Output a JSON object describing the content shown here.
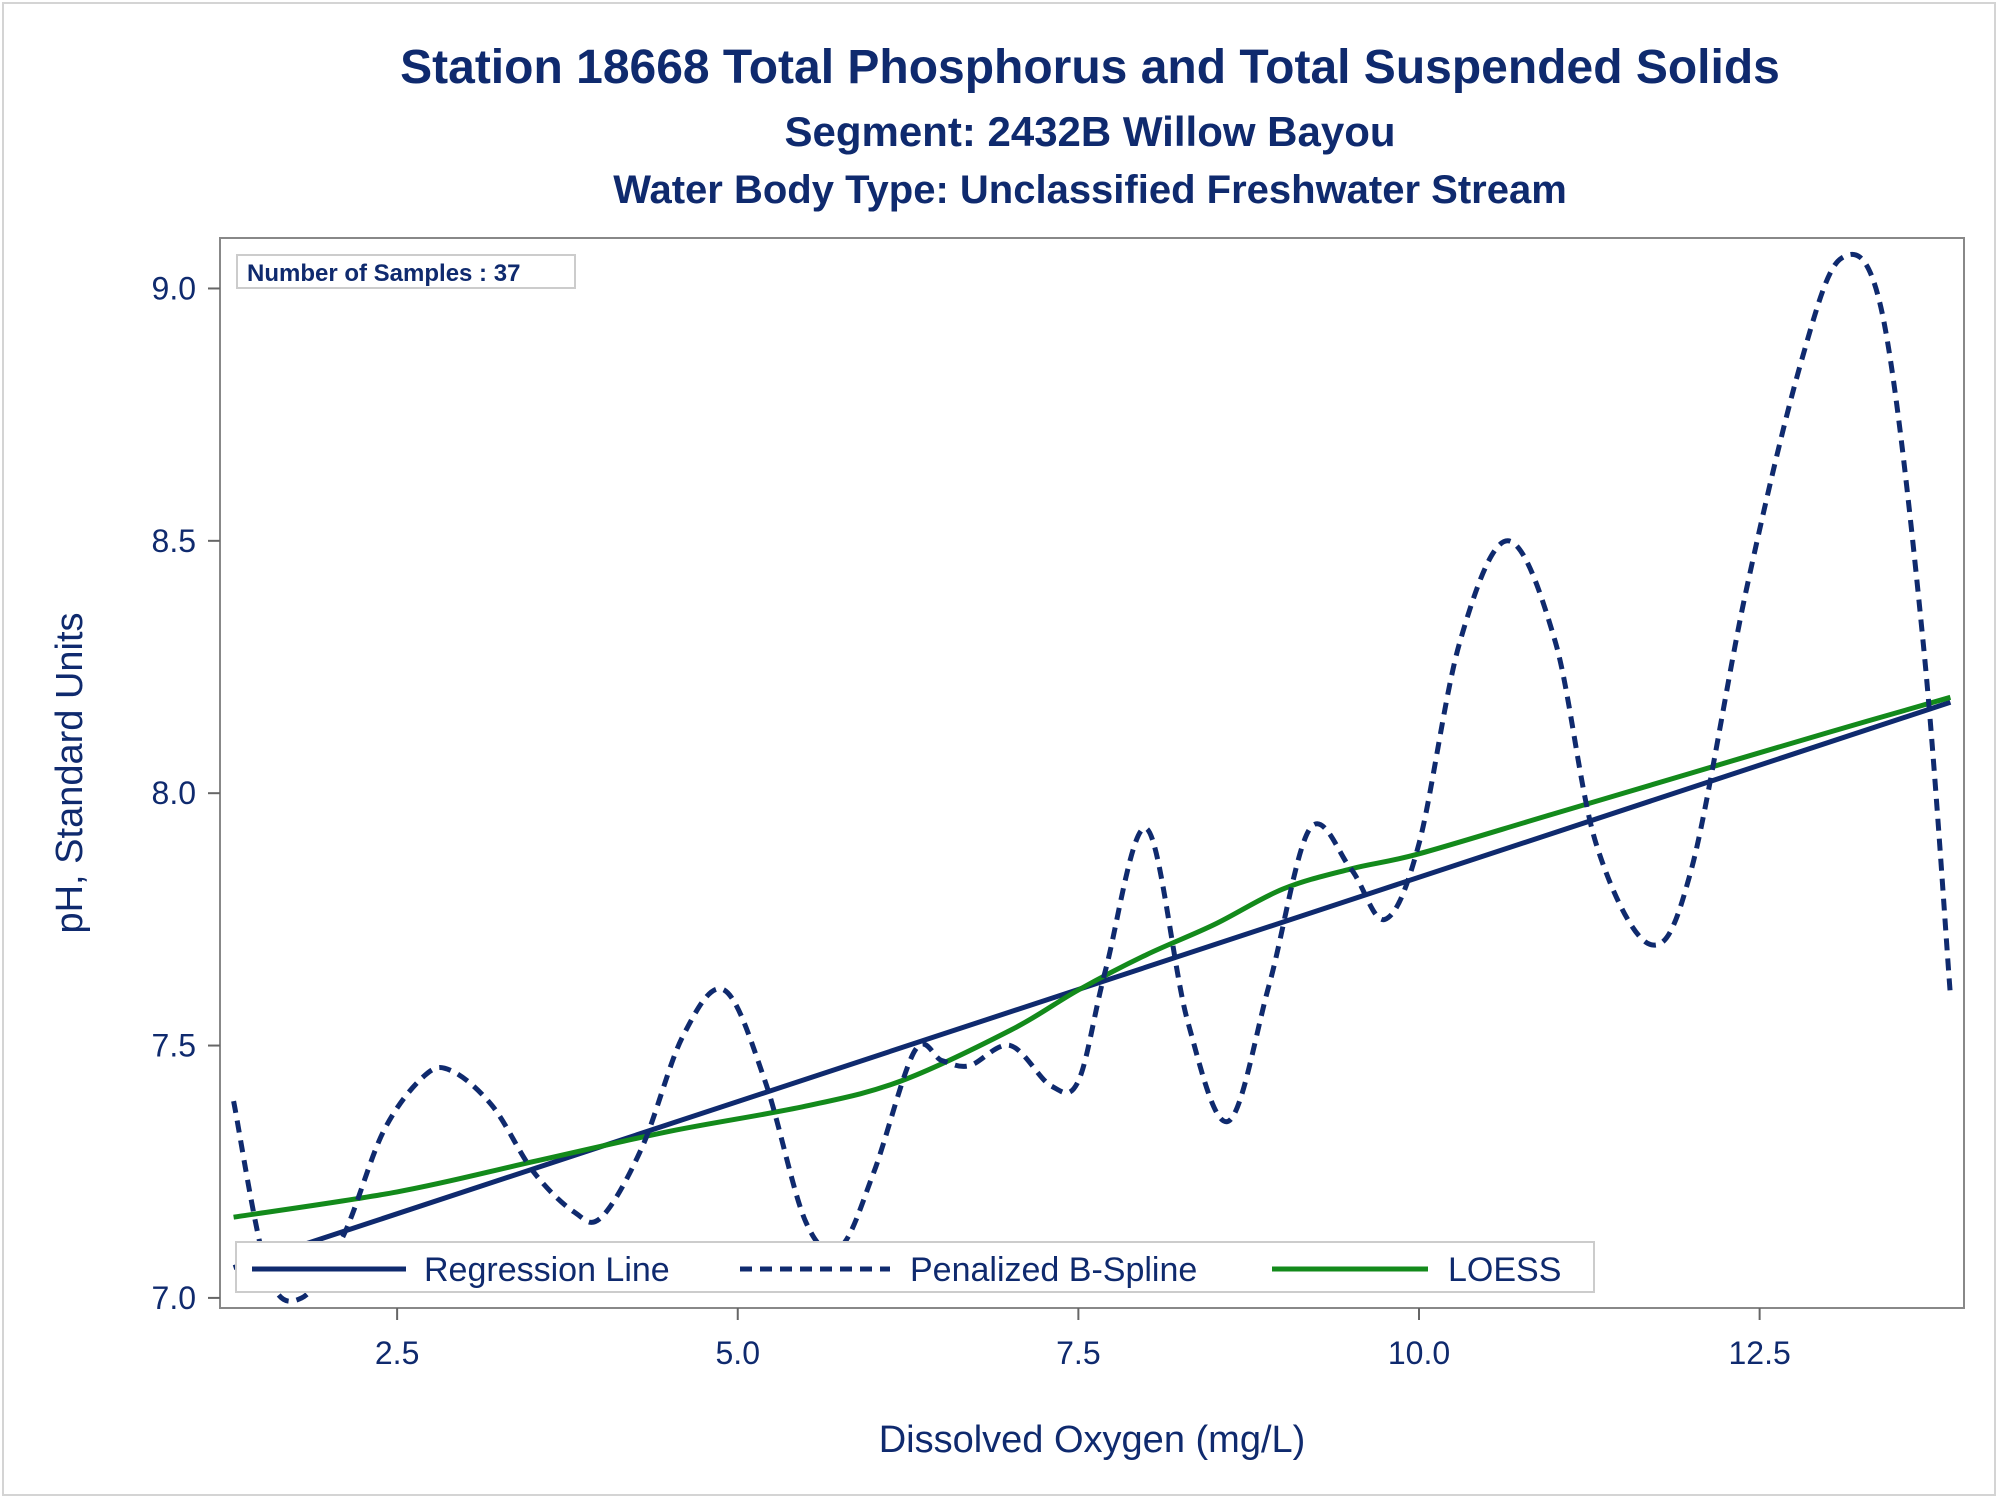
{
  "chart_data": {
    "type": "line",
    "title": "Station 18668  Total Phosphorus and Total Suspended Solids",
    "subtitle": "Segment: 2432B  Willow Bayou",
    "subtitle2": "Water Body Type: Unclassified Freshwater Stream",
    "xlabel": "Dissolved Oxygen (mg/L)",
    "ylabel": "pH, Standard Units",
    "xlim": [
      1.2,
      14.0
    ],
    "ylim": [
      6.98,
      9.1
    ],
    "x_ticks": [
      "2.5",
      "5.0",
      "7.5",
      "10.0",
      "12.5"
    ],
    "x_tick_values": [
      2.5,
      5.0,
      7.5,
      10.0,
      12.5
    ],
    "y_ticks": [
      "7.0",
      "7.5",
      "8.0",
      "8.5",
      "9.0"
    ],
    "y_tick_values": [
      7.0,
      7.5,
      8.0,
      8.5,
      9.0
    ],
    "inset": "Number of Samples : 37",
    "legend_position": "bottom-left inside",
    "grid": false,
    "series": [
      {
        "name": "Regression Line",
        "style": "solid",
        "color": "#0f2a6e",
        "x": [
          1.3,
          13.9
        ],
        "y": [
          7.06,
          8.18
        ]
      },
      {
        "name": "Penalized B-Spline",
        "style": "dashed",
        "color": "#0f2a6e",
        "x": [
          1.3,
          1.55,
          1.8,
          2.1,
          2.4,
          2.7,
          2.9,
          3.2,
          3.5,
          3.8,
          4.0,
          4.3,
          4.6,
          4.9,
          5.2,
          5.5,
          5.75,
          6.0,
          6.3,
          6.5,
          6.7,
          7.0,
          7.3,
          7.5,
          7.7,
          8.0,
          8.3,
          8.6,
          8.9,
          9.2,
          9.5,
          9.75,
          10.0,
          10.3,
          10.65,
          11.0,
          11.3,
          11.7,
          12.0,
          12.4,
          12.8,
          13.1,
          13.4,
          13.7,
          13.9
        ],
        "y": [
          7.39,
          7.05,
          7.0,
          7.12,
          7.33,
          7.44,
          7.45,
          7.38,
          7.25,
          7.17,
          7.16,
          7.3,
          7.52,
          7.61,
          7.43,
          7.15,
          7.1,
          7.25,
          7.49,
          7.47,
          7.46,
          7.5,
          7.42,
          7.43,
          7.65,
          7.93,
          7.55,
          7.35,
          7.62,
          7.93,
          7.85,
          7.75,
          7.9,
          8.3,
          8.5,
          8.3,
          7.9,
          7.7,
          7.85,
          8.4,
          8.85,
          9.06,
          8.95,
          8.3,
          7.6
        ]
      },
      {
        "name": "LOESS",
        "style": "solid",
        "color": "#138a1b",
        "x": [
          1.3,
          2.5,
          3.5,
          4.5,
          5.5,
          6.2,
          7.0,
          7.5,
          8.0,
          8.5,
          9.0,
          9.5,
          10.0,
          11.0,
          12.0,
          13.0,
          13.9
        ],
        "y": [
          7.16,
          7.21,
          7.27,
          7.33,
          7.38,
          7.43,
          7.53,
          7.61,
          7.68,
          7.74,
          7.81,
          7.85,
          7.88,
          7.96,
          8.04,
          8.12,
          8.19
        ]
      }
    ]
  }
}
